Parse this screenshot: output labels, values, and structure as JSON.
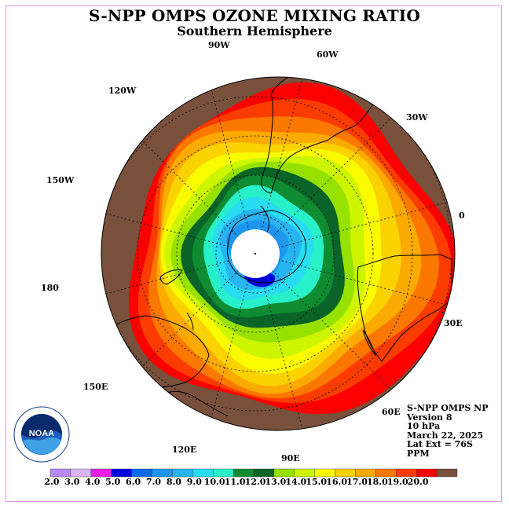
{
  "title": "S-NPP OMPS OZONE MIXING RATIO",
  "subtitle": "Southern Hemisphere",
  "longitude_labels": {
    "w90": "90W",
    "w60": "60W",
    "w30": "30W",
    "e0": "0",
    "e30": "30E",
    "e60": "60E",
    "e90": "90E",
    "e120": "120E",
    "e150": "150E",
    "e180": "180",
    "w150": "150W",
    "w120": "120W"
  },
  "info": {
    "instrument": "S-NPP OMPS NP",
    "version": "Version 8",
    "level": "10 hPa",
    "date": "March 22, 2025",
    "lat_ext": "Lat Ext = 76S",
    "units": "PPM"
  },
  "logo_text": "NOAA",
  "colorbar": {
    "ticks": [
      "2.0",
      "3.0",
      "4.0",
      "5.0",
      "6.0",
      "7.0",
      "8.0",
      "9.0",
      "10.0",
      "11.0",
      "12.0",
      "13.0",
      "14.0",
      "15.0",
      "16.0",
      "17.0",
      "18.0",
      "19.0",
      "20.0"
    ],
    "colors": [
      "#b78af7",
      "#dcb4f5",
      "#ea1be6",
      "#0000dc",
      "#0a6ae6",
      "#1e96ee",
      "#28b4f0",
      "#28dcf2",
      "#28f0c8",
      "#0f8c32",
      "#0a6428",
      "#96e100",
      "#cdf500",
      "#fafa00",
      "#fad200",
      "#faaa00",
      "#fa7800",
      "#fa3c00",
      "#fa0000",
      "#78503c"
    ]
  },
  "map_colors": {
    "ocean_background": "#78503c",
    "bands": [
      "#fa0000",
      "#fa3c00",
      "#fa7800",
      "#faaa00",
      "#fad200",
      "#fafa00",
      "#cdf500",
      "#96e100",
      "#0a6428",
      "#0f8c32",
      "#28f0c8",
      "#28dcf2",
      "#28b4f0",
      "#1e96ee"
    ],
    "polar_cap": "#ffffff",
    "low_patch": "#0000dc"
  }
}
